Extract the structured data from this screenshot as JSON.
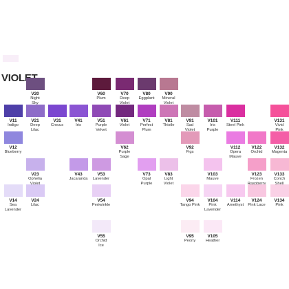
{
  "title": "VIOLET",
  "swatches": [
    {
      "code": "V20",
      "name": "Night\nSky",
      "color": "#6d4f80",
      "col": 1,
      "row": 0
    },
    {
      "code": "V60",
      "name": "Plum",
      "color": "#5d1a3c",
      "col": 4,
      "row": 0
    },
    {
      "code": "V70",
      "name": "Deep\nViolet",
      "color": "#7a2a72",
      "col": 5,
      "row": 0
    },
    {
      "code": "V80",
      "name": "Eggplant",
      "color": "#6b3a6e",
      "col": 6,
      "row": 0
    },
    {
      "code": "V90",
      "name": "Mineral\nViolet",
      "color": "#b87891",
      "col": 7,
      "row": 0
    },
    {
      "code": "V11",
      "name": "Indigo",
      "color": "#4e3fa8",
      "col": 0,
      "row": 1
    },
    {
      "code": "V21",
      "name": "Deep\nLilac",
      "color": "#8e6cc8",
      "col": 1,
      "row": 1
    },
    {
      "code": "V31",
      "name": "Crocus",
      "color": "#7b47d0",
      "col": 2,
      "row": 1
    },
    {
      "code": "V41",
      "name": "Iris",
      "color": "#8b55d3",
      "col": 3,
      "row": 1
    },
    {
      "code": "V51",
      "name": "Purple\nVelvet",
      "color": "#8f4ab6",
      "col": 4,
      "row": 1
    },
    {
      "code": "V61",
      "name": "Violet",
      "color": "#73287e",
      "col": 5,
      "row": 1
    },
    {
      "code": "V71",
      "name": "Perfect\nPlum",
      "color": "#b03ec0",
      "col": 6,
      "row": 1
    },
    {
      "code": "V81",
      "name": "Thistle",
      "color": "#cd75b6",
      "col": 7,
      "row": 1
    },
    {
      "code": "V91",
      "name": "Sad\nViolet",
      "color": "#bf8ca2",
      "col": 8,
      "row": 1
    },
    {
      "code": "V101",
      "name": "Iris\nPurple",
      "color": "#c65cad",
      "col": 9,
      "row": 1
    },
    {
      "code": "V111",
      "name": "Steel Pink",
      "color": "#da2fa0",
      "col": 10,
      "row": 1
    },
    {
      "code": "V131",
      "name": "Vivid\nPink",
      "color": "#f5519a",
      "col": 12,
      "row": 1
    },
    {
      "code": "V12",
      "name": "Blueberry",
      "color": "#8f87de",
      "col": 0,
      "row": 2
    },
    {
      "code": "V62",
      "name": "Purple\nSage",
      "color": "#d48ed2",
      "col": 5,
      "row": 2
    },
    {
      "code": "V92",
      "name": "Figs",
      "color": "#e39ab9",
      "col": 8,
      "row": 2
    },
    {
      "code": "V112",
      "name": "Opera\nMauve",
      "color": "#ea7ce2",
      "col": 10,
      "row": 2
    },
    {
      "code": "V122",
      "name": "Orchid",
      "color": "#f178c8",
      "col": 11,
      "row": 2
    },
    {
      "code": "V132",
      "name": "Magenta",
      "color": "#f45ea7",
      "col": 12,
      "row": 2
    },
    {
      "code": "V23",
      "name": "Ophelia\nViolet",
      "color": "#c7b1ec",
      "col": 1,
      "row": 3
    },
    {
      "code": "V43",
      "name": "Jacaranda",
      "color": "#c39ae8",
      "col": 3,
      "row": 3
    },
    {
      "code": "V53",
      "name": "Lavender",
      "color": "#ce9ae2",
      "col": 4,
      "row": 3
    },
    {
      "code": "V73",
      "name": "Opal\nPurple",
      "color": "#e29ff0",
      "col": 6,
      "row": 3
    },
    {
      "code": "V83",
      "name": "Light\nViolet",
      "color": "#ecc0e9",
      "col": 7,
      "row": 3
    },
    {
      "code": "V103",
      "name": "Mauve",
      "color": "#f4c3ee",
      "col": 9,
      "row": 3
    },
    {
      "code": "V123",
      "name": "Frozen\nRaspberry",
      "color": "#f59fc9",
      "col": 11,
      "row": 3
    },
    {
      "code": "V133",
      "name": "Conch\nShell",
      "color": "#f7b8d4",
      "col": 12,
      "row": 3
    },
    {
      "code": "V14",
      "name": "Sea\nLavender",
      "color": "#e4dcf8",
      "col": 0,
      "row": 4
    },
    {
      "code": "V24",
      "name": "Lilac",
      "color": "#dacaf5",
      "col": 1,
      "row": 4
    },
    {
      "code": "V54",
      "name": "Periwinkle",
      "color": "#e8d0f5",
      "col": 4,
      "row": 4
    },
    {
      "code": "V94",
      "name": "Tango Pink",
      "color": "#fbd6ea",
      "col": 8,
      "row": 4
    },
    {
      "code": "V104",
      "name": "Pink\nLavender",
      "color": "#f6d5f4",
      "col": 9,
      "row": 4
    },
    {
      "code": "V114",
      "name": "Amethyst",
      "color": "#f7c9ef",
      "col": 10,
      "row": 4
    },
    {
      "code": "V124",
      "name": "Pink Lace",
      "color": "#f8c7e0",
      "col": 11,
      "row": 4
    },
    {
      "code": "V134",
      "name": "Pink",
      "color": "#fad1e6",
      "col": 12,
      "row": 4
    },
    {
      "code": "V55",
      "name": "Orchid\nIce",
      "color": "#f3e9f9",
      "col": 4,
      "row": 5
    },
    {
      "code": "V95",
      "name": "Peony",
      "color": "#fcecf4",
      "col": 8,
      "row": 5
    },
    {
      "code": "V105",
      "name": "Heather",
      "color": "#fbe8f6",
      "col": 9,
      "row": 5
    }
  ]
}
